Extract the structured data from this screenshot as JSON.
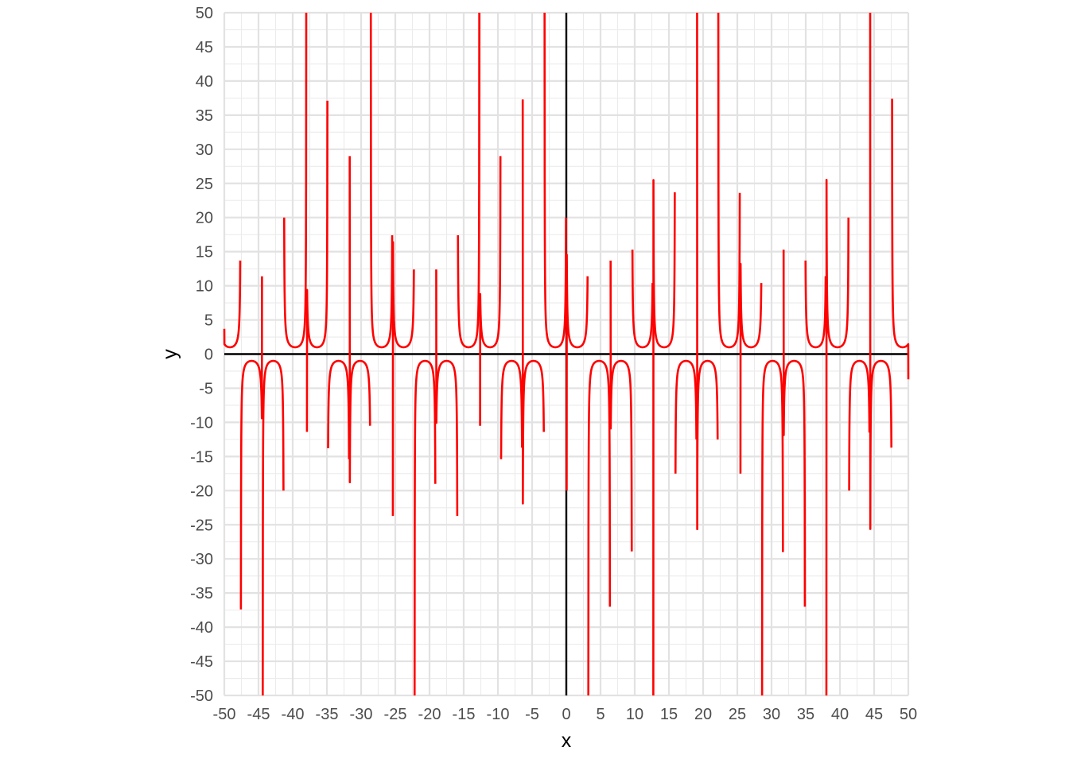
{
  "chart_data": {
    "type": "line",
    "title": "",
    "xlabel": "x",
    "ylabel": "y",
    "xlim": [
      -50,
      50
    ],
    "ylim": [
      -50,
      50
    ],
    "x_ticks": [
      -50,
      -45,
      -40,
      -35,
      -30,
      -25,
      -20,
      -15,
      -10,
      -5,
      0,
      5,
      10,
      15,
      20,
      25,
      30,
      35,
      40,
      45,
      50
    ],
    "y_ticks": [
      -50,
      -45,
      -40,
      -35,
      -30,
      -25,
      -20,
      -15,
      -10,
      -5,
      0,
      5,
      10,
      15,
      20,
      25,
      30,
      35,
      40,
      45,
      50
    ],
    "grid": true,
    "x_tick_labels": [
      "-50",
      "-45",
      "-40",
      "-35",
      "-30",
      "-25",
      "-20",
      "-15",
      "-10",
      "-5",
      "0",
      "5",
      "10",
      "15",
      "20",
      "25",
      "30",
      "35",
      "40",
      "45",
      "50"
    ],
    "y_tick_labels": [
      "-50",
      "-45",
      "-40",
      "-35",
      "-30",
      "-25",
      "-20",
      "-15",
      "-10",
      "-5",
      "0",
      "5",
      "10",
      "15",
      "20",
      "25",
      "30",
      "35",
      "40",
      "45",
      "50"
    ],
    "series": [
      {
        "color": "#ff0000",
        "description": "secant-like curve: branches alternate above y=1 and below y=-1, vertical asymptotes roughly every pi units",
        "asymptotes_x": [
          -47.6,
          -44.4,
          -41.3,
          -38.0,
          -34.9,
          -31.7,
          -28.6,
          -25.4,
          -22.2,
          -19.1,
          -15.9,
          -12.7,
          -9.6,
          -6.4,
          -3.2,
          0.0,
          3.2,
          6.4,
          9.6,
          12.7,
          15.9,
          19.1,
          22.2,
          25.4,
          28.6,
          31.7,
          34.9,
          38.0,
          41.3,
          44.4,
          47.6
        ],
        "branch_sign_left_to_right": [
          1,
          -1,
          -1,
          1,
          1,
          -1,
          -1,
          1,
          1,
          -1,
          -1,
          1,
          1,
          -1,
          -1,
          1,
          1,
          -1,
          -1,
          1,
          1,
          -1,
          -1,
          1,
          1,
          -1,
          -1,
          1,
          1,
          -1,
          -1,
          1
        ],
        "spike_y_left_of_asymptote": [
          13.7,
          11.4,
          -20.0,
          50,
          37.1,
          -15.4,
          -10.5,
          17.4,
          12.4,
          -19.0,
          -23.7,
          50,
          29.0,
          -13.7,
          -11.4,
          20.0,
          11.4,
          -37.0,
          -28.9,
          10.4,
          23.7,
          -12.5,
          -12.5,
          23.6,
          10.4,
          -29.0,
          -37.0,
          11.4,
          20.0,
          -11.5,
          -13.7
        ],
        "spike_y_right_of_asymptote": [
          -37.4,
          -50,
          20.0,
          -11.4,
          -13.8,
          29.0,
          50,
          -23.7,
          -50,
          12.4,
          17.4,
          -10.5,
          -15.4,
          37.3,
          50,
          -20.0,
          -50,
          13.7,
          15.3,
          -50,
          -17.5,
          50,
          50,
          -17.5,
          -50,
          15.3,
          13.7,
          -50,
          -20.0,
          50,
          37.4
        ],
        "y_at_x_min": 3.7,
        "y_at_x_max": -3.7
      }
    ]
  }
}
